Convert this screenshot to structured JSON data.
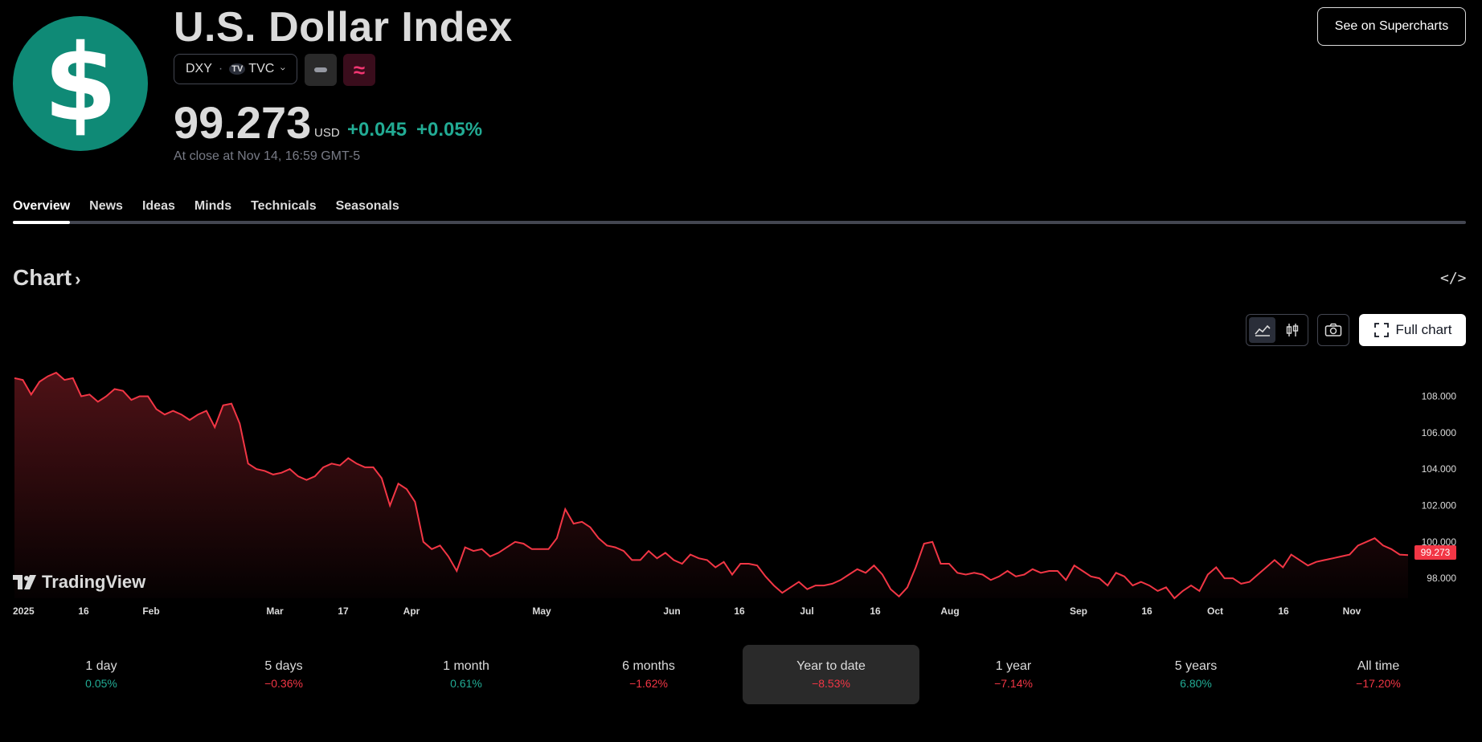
{
  "header": {
    "logo_glyph": "$",
    "title": "U.S. Dollar Index",
    "symbol": "DXY",
    "exchange_logo": "TV",
    "exchange": "TVC",
    "price": "99.273",
    "currency": "USD",
    "change": "+0.045",
    "change_percent": "+0.05%",
    "close_note": "At close at Nov 14, 16:59 GMT-5",
    "badge2": "≈",
    "supercharts_label": "See on Supercharts"
  },
  "tabs": [
    "Overview",
    "News",
    "Ideas",
    "Minds",
    "Technicals",
    "Seasonals"
  ],
  "chart_section": {
    "title": "Chart",
    "full_chart_label": "Full chart",
    "watermark": "TradingView",
    "embed_icon": "</>"
  },
  "colors": {
    "accent_green": "#22ab94",
    "accent_red": "#f23645",
    "logo_bg": "#0f8a76"
  },
  "chart_data": {
    "type": "area",
    "ylim": [
      96.9,
      109.7
    ],
    "y_ticks": [
      "108.000",
      "106.000",
      "104.000",
      "102.000",
      "100.000",
      "98.000"
    ],
    "x_tick_labels": [
      "2025",
      "16",
      "Feb",
      "Mar",
      "17",
      "Apr",
      "May",
      "Jun",
      "16",
      "Jul",
      "16",
      "Aug",
      "Sep",
      "16",
      "Oct",
      "16",
      "Nov"
    ],
    "last_price_label": "99.273",
    "series": [
      {
        "values": [
          109.0,
          108.9,
          108.1,
          108.8,
          109.1,
          109.3,
          108.9,
          109.0,
          108.0,
          108.1,
          107.7,
          108.0,
          108.4,
          108.3,
          107.8,
          108.0,
          108.0,
          107.3,
          107.0,
          107.2,
          107.0,
          106.7,
          107.0,
          107.2,
          106.3,
          107.5,
          107.6,
          106.5,
          104.3,
          104.0,
          103.9,
          103.7,
          103.8,
          104.0,
          103.6,
          103.4,
          103.6,
          104.1,
          104.3,
          104.2,
          104.6,
          104.3,
          104.1,
          104.1,
          103.5,
          102.0,
          103.2,
          102.9,
          102.2,
          100.0,
          99.6,
          99.8,
          99.2,
          98.4,
          99.7,
          99.5,
          99.6,
          99.2,
          99.4,
          99.7,
          100.0,
          99.9,
          99.6,
          99.6,
          99.6,
          100.2,
          101.8,
          101.0,
          101.1,
          100.8,
          100.2,
          99.8,
          99.7,
          99.5,
          99.0,
          99.0,
          99.5,
          99.1,
          99.4,
          99.0,
          98.8,
          99.3,
          99.1,
          99.0,
          98.6,
          98.9,
          98.2,
          98.8,
          98.8,
          98.7,
          98.1,
          97.6,
          97.2,
          97.5,
          97.8,
          97.4,
          97.6,
          97.6,
          97.7,
          97.9,
          98.2,
          98.5,
          98.3,
          98.7,
          98.2,
          97.4,
          97.0,
          97.5,
          98.6,
          99.9,
          100.0,
          98.8,
          98.8,
          98.3,
          98.2,
          98.3,
          98.2,
          97.9,
          98.1,
          98.4,
          98.1,
          98.2,
          98.5,
          98.3,
          98.4,
          98.4,
          97.9,
          98.7,
          98.4,
          98.1,
          98.0,
          97.6,
          98.3,
          98.1,
          97.6,
          97.8,
          97.6,
          97.3,
          97.5,
          96.9,
          97.3,
          97.6,
          97.3,
          98.2,
          98.6,
          98.0,
          98.0,
          97.7,
          97.8,
          98.2,
          98.6,
          99.0,
          98.6,
          99.3,
          99.0,
          98.7,
          98.9,
          99.0,
          99.1,
          99.2,
          99.3,
          99.8,
          100.0,
          100.2,
          99.8,
          99.6,
          99.3,
          99.27
        ]
      }
    ]
  },
  "periods": [
    {
      "label": "1 day",
      "value": "0.05%",
      "dir": "pos"
    },
    {
      "label": "5 days",
      "value": "−0.36%",
      "dir": "neg"
    },
    {
      "label": "1 month",
      "value": "0.61%",
      "dir": "pos"
    },
    {
      "label": "6 months",
      "value": "−1.62%",
      "dir": "neg"
    },
    {
      "label": "Year to date",
      "value": "−8.53%",
      "dir": "neg",
      "selected": true
    },
    {
      "label": "1 year",
      "value": "−7.14%",
      "dir": "neg"
    },
    {
      "label": "5 years",
      "value": "6.80%",
      "dir": "pos"
    },
    {
      "label": "All time",
      "value": "−17.20%",
      "dir": "neg"
    }
  ]
}
